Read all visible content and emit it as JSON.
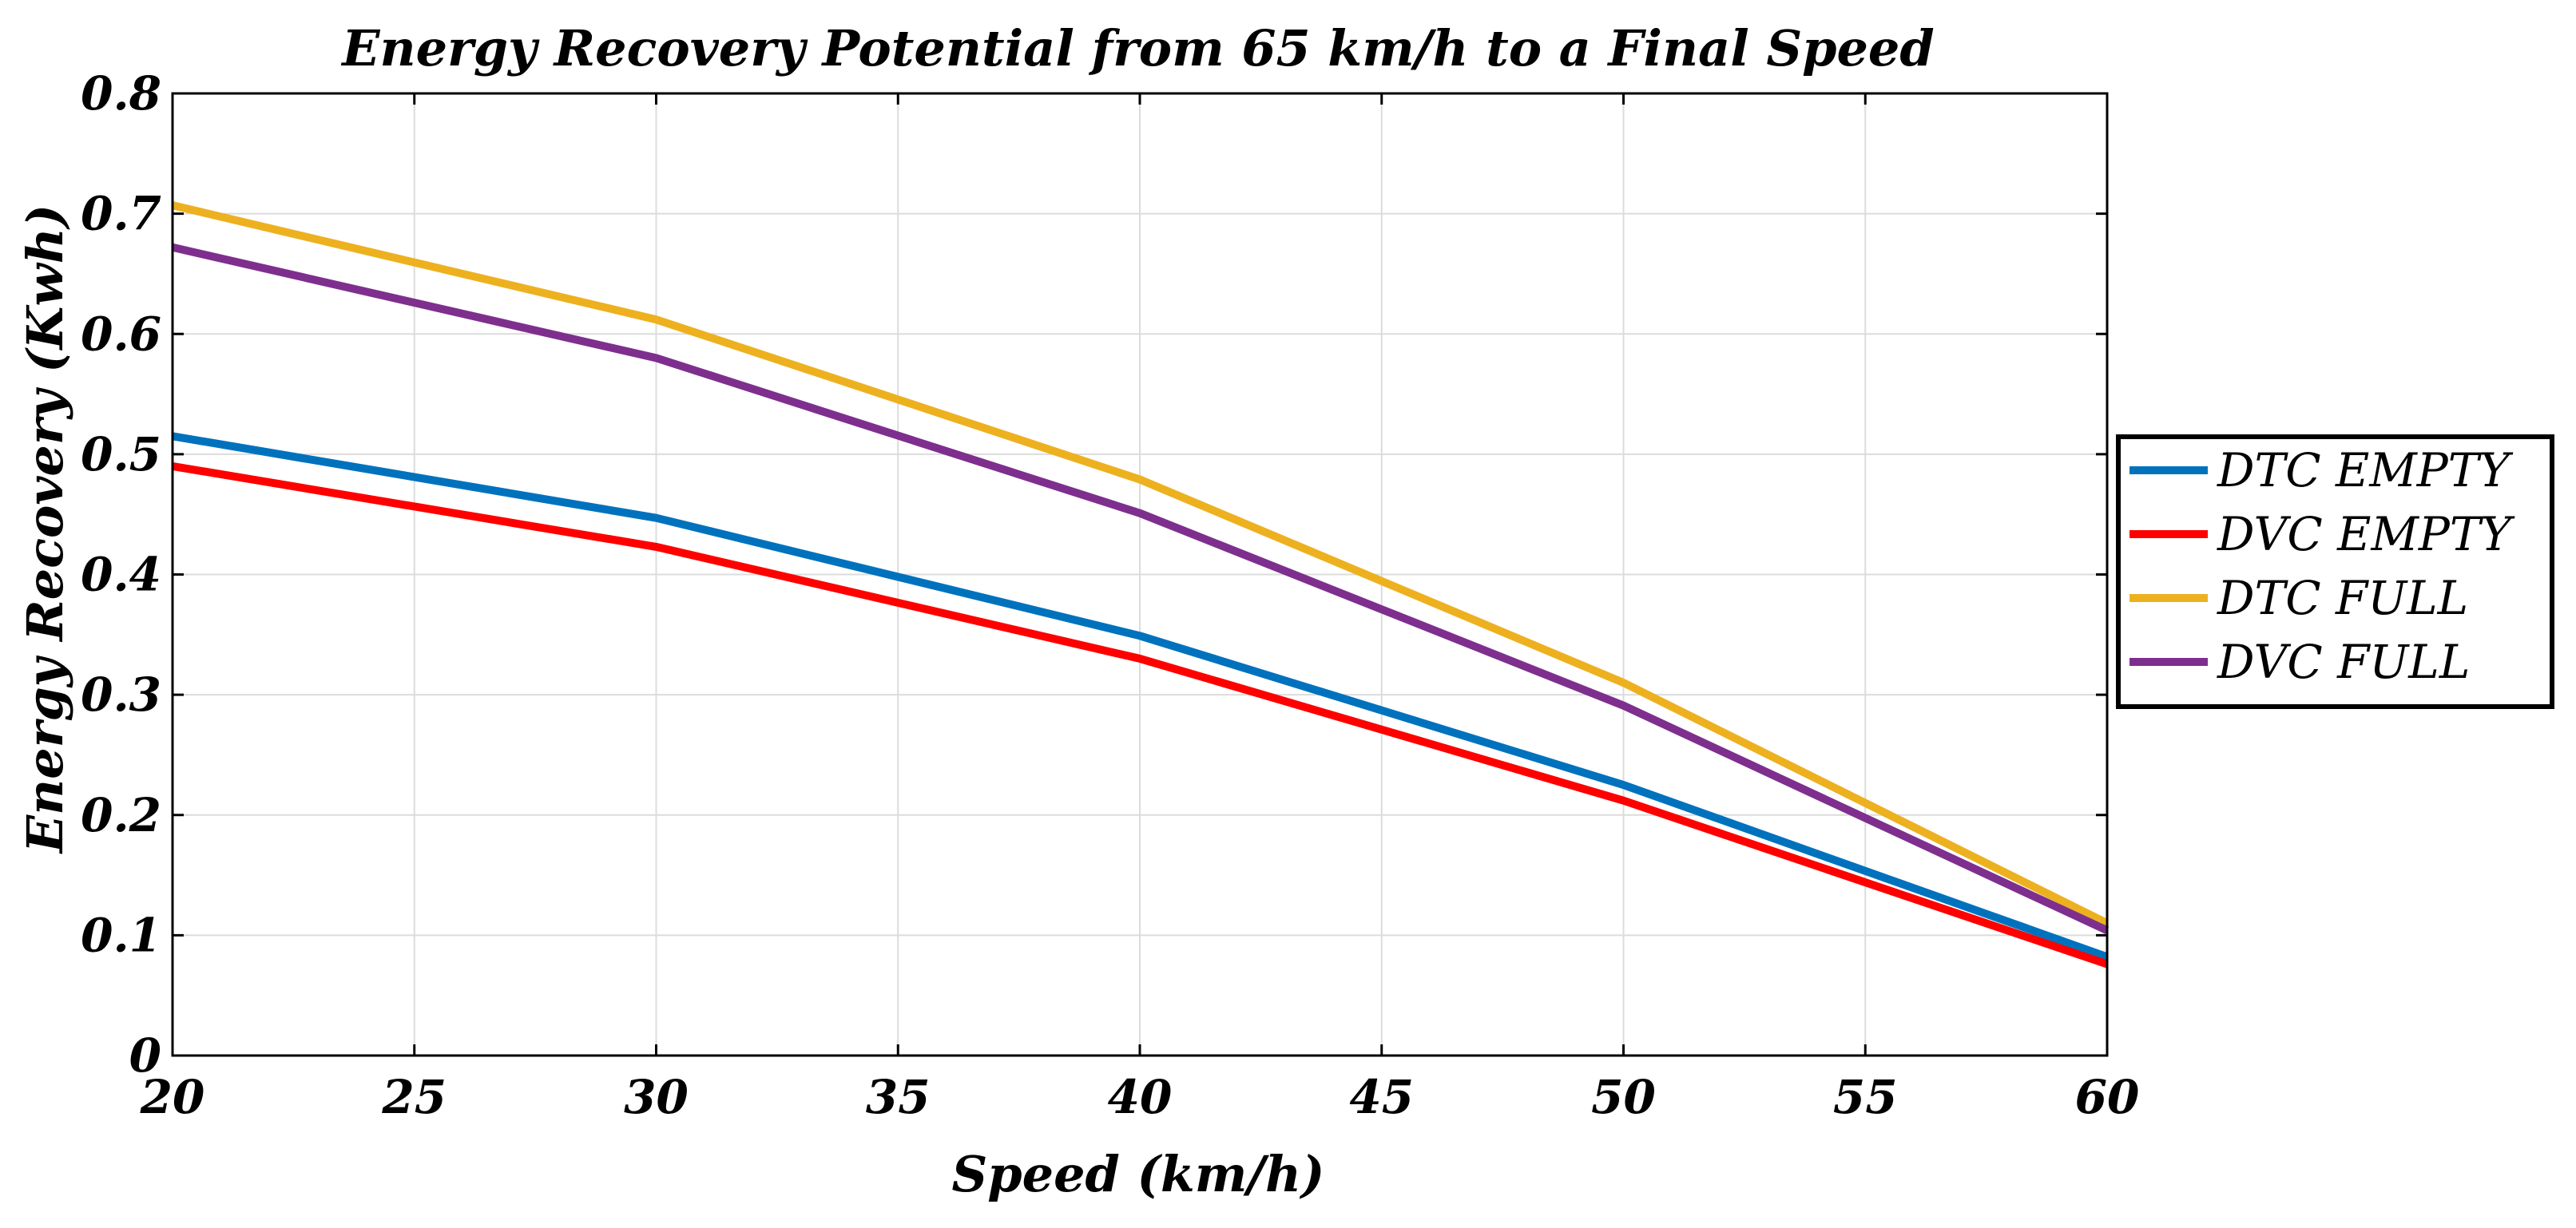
{
  "chart_data": {
    "type": "line",
    "title": "Energy Recovery Potential from 65 km/h to a Final Speed",
    "xlabel": "Speed (km/h)",
    "ylabel": "Energy Recovery (Kwh)",
    "xlim": [
      20,
      60
    ],
    "ylim": [
      0,
      0.8
    ],
    "xticks": [
      20,
      25,
      30,
      35,
      40,
      45,
      50,
      55,
      60
    ],
    "yticks": [
      0,
      0.1,
      0.2,
      0.3,
      0.4,
      0.5,
      0.6,
      0.7,
      0.8
    ],
    "xtick_labels": [
      "20",
      "25",
      "30",
      "35",
      "40",
      "45",
      "50",
      "55",
      "60"
    ],
    "ytick_labels": [
      "0",
      "0.1",
      "0.2",
      "0.3",
      "0.4",
      "0.5",
      "0.6",
      "0.7",
      "0.8"
    ],
    "grid": true,
    "legend_position": "outside-right",
    "x": [
      20,
      30,
      40,
      50,
      60
    ],
    "series": [
      {
        "name": "DTC EMPTY",
        "color": "#0072BD",
        "values": [
          0.515,
          0.447,
          0.349,
          0.225,
          0.082
        ]
      },
      {
        "name": "DVC EMPTY",
        "color": "#FF0000",
        "values": [
          0.49,
          0.423,
          0.33,
          0.212,
          0.076
        ]
      },
      {
        "name": "DTC FULL",
        "color": "#EDB120",
        "values": [
          0.707,
          0.612,
          0.479,
          0.31,
          0.11
        ]
      },
      {
        "name": "DVC FULL",
        "color": "#7E2F8E",
        "values": [
          0.672,
          0.58,
          0.451,
          0.291,
          0.104
        ]
      }
    ]
  }
}
